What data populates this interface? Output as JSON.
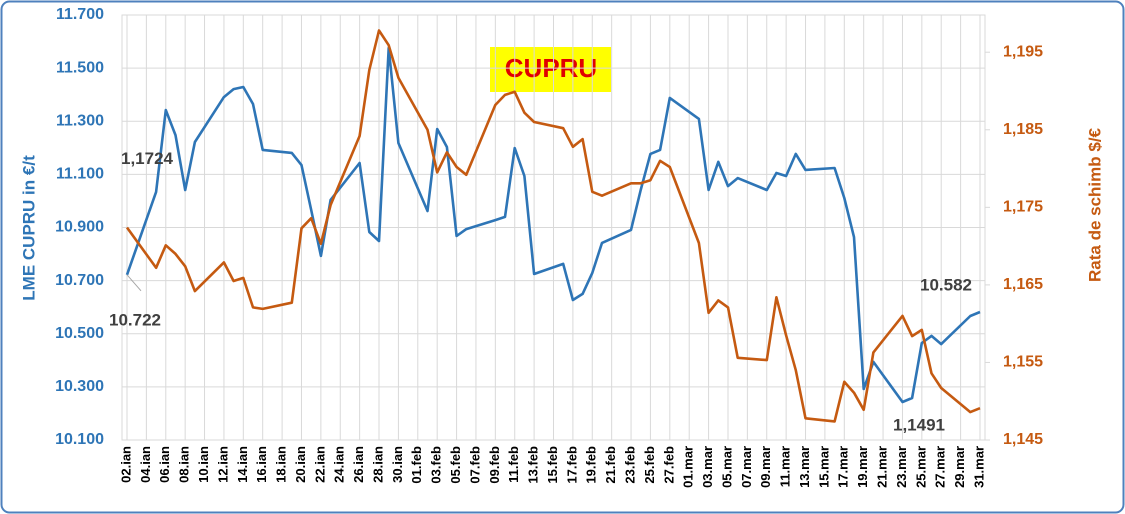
{
  "chart_data": {
    "type": "line",
    "title": "CUPRU",
    "y_label": "LME CUPRU in €/t",
    "y2_label": "Rata de schimb $/€",
    "categories": [
      "02.ian",
      null,
      "04.ian",
      null,
      "06.ian",
      null,
      "08.ian",
      null,
      "10.ian",
      null,
      "12.ian",
      null,
      "14.ian",
      null,
      "16.ian",
      null,
      "18.ian",
      null,
      "20.ian",
      null,
      "22.ian",
      null,
      "24.ian",
      null,
      "26.ian",
      null,
      "28.ian",
      null,
      "30.ian",
      null,
      "01.feb",
      null,
      "03.feb",
      null,
      "05.feb",
      null,
      "07.feb",
      null,
      "09.feb",
      null,
      "11.feb",
      null,
      "13.feb",
      null,
      "15.feb",
      null,
      "17.feb",
      null,
      "19.feb",
      null,
      "21.feb",
      null,
      "23.feb",
      null,
      "25.feb",
      null,
      "27.feb",
      null,
      "01.mar",
      null,
      "03.mar",
      null,
      "05.mar",
      null,
      "07.mar",
      null,
      "09.mar",
      null,
      "11.mar",
      null,
      "13.mar",
      null,
      "15.mar",
      null,
      "17.mar",
      null,
      "19.mar",
      null,
      "21.mar",
      null,
      "23.mar",
      null,
      "25.mar",
      null,
      "27.mar",
      null,
      "29.mar",
      null,
      "31.mar"
    ],
    "series": [
      {
        "color": "#2e75b6",
        "axis": "y",
        "values": [
          10722,
          null,
          null,
          11034,
          11342,
          11248,
          11041,
          11222,
          null,
          null,
          11391,
          11421,
          11429,
          11365,
          11192,
          null,
          null,
          11181,
          11135,
          10966,
          10793,
          11004,
          null,
          null,
          11143,
          10883,
          10849,
          11576,
          11218,
          null,
          null,
          10962,
          11271,
          11203,
          10868,
          10894,
          null,
          null,
          10928,
          10940,
          11199,
          11094,
          10725,
          null,
          null,
          10763,
          10627,
          10650,
          10729,
          10842,
          null,
          null,
          10891,
          11041,
          11177,
          11192,
          11388,
          null,
          null,
          11309,
          11041,
          11147,
          11056,
          11086,
          null,
          null,
          11041,
          11105,
          11094,
          11177,
          11117,
          null,
          null,
          11124,
          11011,
          10864,
          10292,
          10394,
          null,
          null,
          10243,
          10258,
          10465,
          10492,
          10461,
          null,
          null,
          10567,
          10582
        ],
        "value_labels": [
          "10.722",
          null,
          null,
          null,
          null,
          null,
          null,
          null,
          null,
          null,
          null,
          null,
          null,
          null,
          null,
          null,
          null,
          null,
          null,
          null,
          null,
          null,
          null,
          null,
          null,
          null,
          null,
          null,
          null,
          null,
          null,
          null,
          null,
          null,
          null,
          null,
          null,
          null,
          null,
          null,
          null,
          null,
          null,
          null,
          null,
          null,
          null,
          null,
          null,
          null,
          null,
          null,
          null,
          null,
          null,
          null,
          null,
          null,
          null,
          null,
          null,
          null,
          null,
          null,
          null,
          null,
          null,
          null,
          null,
          null,
          null,
          null,
          null,
          null,
          null,
          null,
          null,
          null,
          null,
          null,
          null,
          null,
          null,
          null,
          null,
          null,
          null,
          null,
          "10.582"
        ]
      },
      {
        "color": "#c55a11",
        "axis": "y2",
        "values": [
          1.1724,
          null,
          null,
          1.1672,
          1.1701,
          1.169,
          1.1674,
          1.1642,
          null,
          null,
          1.1679,
          1.1655,
          1.1659,
          1.1621,
          1.1619,
          null,
          null,
          1.1627,
          1.1723,
          1.1736,
          1.1703,
          1.1753,
          null,
          null,
          1.1842,
          1.1927,
          1.1978,
          1.1959,
          1.1917,
          null,
          null,
          1.185,
          1.1795,
          1.1821,
          1.1802,
          1.1792,
          null,
          null,
          1.1882,
          1.1895,
          1.1899,
          1.1872,
          1.186,
          null,
          null,
          1.1852,
          1.1828,
          1.1838,
          1.177,
          1.1765,
          null,
          null,
          1.1781,
          1.1781,
          1.1785,
          1.181,
          1.1802,
          null,
          null,
          1.1704,
          1.1614,
          1.163,
          1.1621,
          1.1556,
          null,
          null,
          1.1553,
          1.1634,
          1.1585,
          1.154,
          1.1478,
          null,
          null,
          1.1474,
          1.1525,
          1.1511,
          1.1489,
          1.1563,
          null,
          null,
          1.161,
          1.1584,
          1.1592,
          1.1536,
          1.1517,
          null,
          null,
          1.1486,
          1.1491
        ],
        "value_labels": [
          "1,1724",
          null,
          null,
          null,
          null,
          null,
          null,
          null,
          null,
          null,
          null,
          null,
          null,
          null,
          null,
          null,
          null,
          null,
          null,
          null,
          null,
          null,
          null,
          null,
          null,
          null,
          null,
          null,
          null,
          null,
          null,
          null,
          null,
          null,
          null,
          null,
          null,
          null,
          null,
          null,
          null,
          null,
          null,
          null,
          null,
          null,
          null,
          null,
          null,
          null,
          null,
          null,
          null,
          null,
          null,
          null,
          null,
          null,
          null,
          null,
          null,
          null,
          null,
          null,
          null,
          null,
          null,
          null,
          null,
          null,
          null,
          null,
          null,
          null,
          null,
          null,
          null,
          null,
          null,
          null,
          null,
          null,
          null,
          null,
          null,
          null,
          null,
          null,
          "1,1491"
        ]
      }
    ],
    "ylim": [
      10100,
      11700
    ],
    "yticks": [
      {
        "value": 10100,
        "label": "10.100"
      },
      {
        "value": 10300,
        "label": "10.300"
      },
      {
        "value": 10500,
        "label": "10.500"
      },
      {
        "value": 10700,
        "label": "10.700"
      },
      {
        "value": 10900,
        "label": "10.900"
      },
      {
        "value": 11100,
        "label": "11.100"
      },
      {
        "value": 11300,
        "label": "11.300"
      },
      {
        "value": 11500,
        "label": "11.500"
      },
      {
        "value": 11700,
        "label": "11.700"
      }
    ],
    "y2lim": [
      1.145,
      1.1998
    ],
    "y2ticks": [
      {
        "value": 1.145,
        "label": "1,145"
      },
      {
        "value": 1.155,
        "label": "1,155"
      },
      {
        "value": 1.165,
        "label": "1,165"
      },
      {
        "value": 1.175,
        "label": "1,175"
      },
      {
        "value": 1.185,
        "label": "1,185"
      },
      {
        "value": 1.195,
        "label": "1,195"
      }
    ],
    "grid": true
  }
}
